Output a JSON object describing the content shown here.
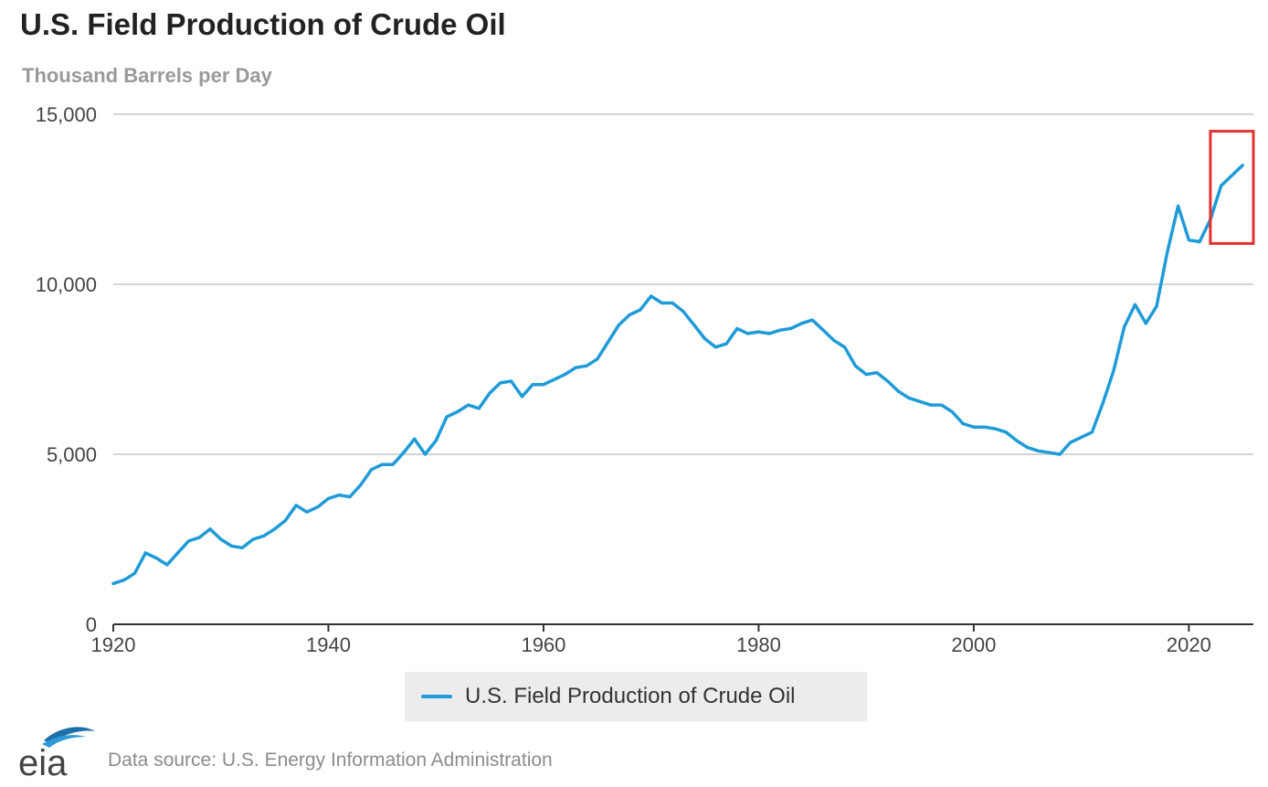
{
  "title": "U.S. Field Production of Crude Oil",
  "subtitle": "Thousand Barrels per Day",
  "legend_label": "U.S. Field Production of Crude Oil",
  "source": "Data source: U.S. Energy Information Administration",
  "logo_text": "eia",
  "colors": {
    "series": "#1f9bd7",
    "highlight_box": "#e53030",
    "grid": "#d4d4d4",
    "axis": "#333333"
  },
  "chart_data": {
    "type": "line",
    "title": "U.S. Field Production of Crude Oil",
    "ylabel": "Thousand Barrels per Day",
    "xlabel": "",
    "xlim": [
      1920,
      2026
    ],
    "ylim": [
      0,
      15000
    ],
    "x_ticks": [
      1920,
      1940,
      1960,
      1980,
      2000,
      2020
    ],
    "y_ticks": [
      0,
      5000,
      10000,
      15000
    ],
    "y_tick_labels": [
      "0",
      "5,000",
      "10,000",
      "15,000"
    ],
    "grid": "horizontal",
    "legend": "bottom-center",
    "highlight": {
      "x_range": [
        2022,
        2026
      ],
      "y_range": [
        11200,
        14500
      ]
    },
    "series": [
      {
        "name": "U.S. Field Production of Crude Oil",
        "x": [
          1920,
          1921,
          1922,
          1923,
          1924,
          1925,
          1926,
          1927,
          1928,
          1929,
          1930,
          1931,
          1932,
          1933,
          1934,
          1935,
          1936,
          1937,
          1938,
          1939,
          1940,
          1941,
          1942,
          1943,
          1944,
          1945,
          1946,
          1947,
          1948,
          1949,
          1950,
          1951,
          1952,
          1953,
          1954,
          1955,
          1956,
          1957,
          1958,
          1959,
          1960,
          1961,
          1962,
          1963,
          1964,
          1965,
          1966,
          1967,
          1968,
          1969,
          1970,
          1971,
          1972,
          1973,
          1974,
          1975,
          1976,
          1977,
          1978,
          1979,
          1980,
          1981,
          1982,
          1983,
          1984,
          1985,
          1986,
          1987,
          1988,
          1989,
          1990,
          1991,
          1992,
          1993,
          1994,
          1995,
          1996,
          1997,
          1998,
          1999,
          2000,
          2001,
          2002,
          2003,
          2004,
          2005,
          2006,
          2007,
          2008,
          2009,
          2010,
          2011,
          2012,
          2013,
          2014,
          2015,
          2016,
          2017,
          2018,
          2019,
          2020,
          2021,
          2022,
          2023,
          2024,
          2025
        ],
        "values": [
          1200,
          1300,
          1500,
          2100,
          1950,
          1750,
          2100,
          2450,
          2550,
          2800,
          2500,
          2300,
          2250,
          2500,
          2600,
          2800,
          3050,
          3500,
          3300,
          3450,
          3700,
          3800,
          3750,
          4100,
          4550,
          4700,
          4700,
          5050,
          5450,
          5000,
          5400,
          6100,
          6250,
          6450,
          6350,
          6800,
          7100,
          7150,
          6700,
          7050,
          7050,
          7200,
          7350,
          7550,
          7600,
          7800,
          8300,
          8800,
          9100,
          9250,
          9650,
          9450,
          9450,
          9200,
          8800,
          8400,
          8150,
          8250,
          8700,
          8550,
          8600,
          8550,
          8650,
          8700,
          8850,
          8950,
          8650,
          8350,
          8150,
          7600,
          7350,
          7400,
          7150,
          6850,
          6650,
          6550,
          6450,
          6450,
          6250,
          5900,
          5800,
          5800,
          5750,
          5650,
          5400,
          5200,
          5100,
          5050,
          5000,
          5350,
          5500,
          5650,
          6500,
          7450,
          8750,
          9400,
          8850,
          9350,
          10950,
          12300,
          11300,
          11250,
          11900,
          12900,
          13200,
          13500
        ]
      }
    ]
  }
}
